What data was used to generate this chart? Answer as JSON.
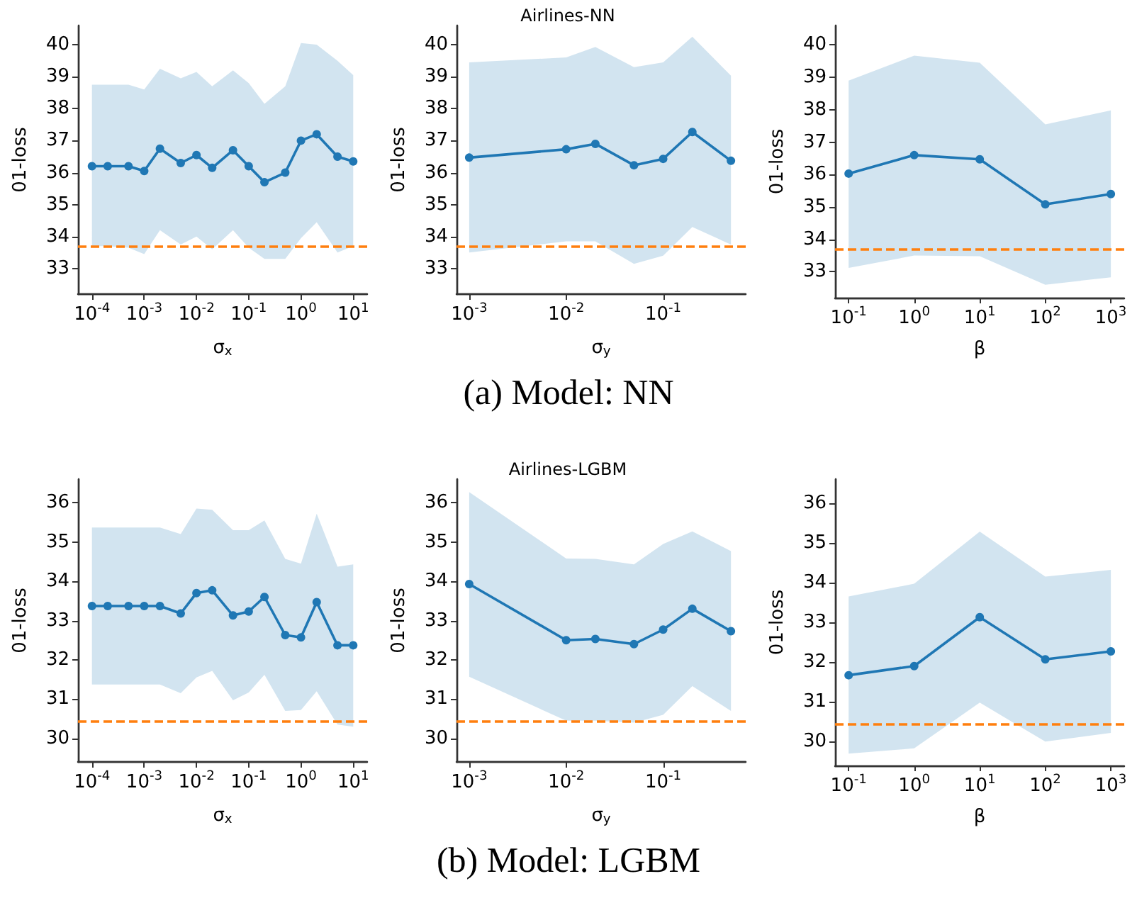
{
  "chart_data": [
    {
      "type": "line",
      "xlabel": "σ$_{x}$",
      "ylabel": "01-loss",
      "log": "x",
      "marker": "circle",
      "line_style": "solid",
      "grid": false,
      "x": [
        0.0001,
        0.0002,
        0.0005,
        0.001,
        0.002,
        0.005,
        0.01,
        0.02,
        0.05,
        0.1,
        0.2,
        0.5,
        1,
        2,
        5,
        10
      ],
      "series": [
        {
          "color": "#1f77b4",
          "values": [
            36.2,
            36.2,
            36.2,
            36.05,
            36.75,
            36.3,
            36.55,
            36.15,
            36.7,
            36.2,
            35.7,
            36.0,
            37.0,
            37.2,
            36.5,
            36.35
          ],
          "upper": [
            38.75,
            38.75,
            38.75,
            38.6,
            39.25,
            38.95,
            39.15,
            38.7,
            39.2,
            38.8,
            38.15,
            38.7,
            40.05,
            40.0,
            39.5,
            39.05
          ],
          "lower": [
            33.7,
            33.7,
            33.65,
            33.45,
            34.2,
            33.75,
            34.0,
            33.6,
            34.2,
            33.65,
            33.3,
            33.3,
            33.95,
            34.45,
            33.5,
            33.7
          ]
        }
      ],
      "ref_lines": [
        {
          "axis": "y",
          "value": 33.7,
          "color": "#ff7f0e",
          "line_style": "dashed"
        }
      ],
      "xlim": [
        5.4e-05,
        18.5
      ],
      "ylim": [
        32.2,
        40.6
      ],
      "xticks": [
        {
          "value": 0.0001,
          "label": "10$^{-4}$"
        },
        {
          "value": 0.001,
          "label": "10$^{-3}$"
        },
        {
          "value": 0.01,
          "label": "10$^{-2}$"
        },
        {
          "value": 0.1,
          "label": "10$^{-1}$"
        },
        {
          "value": 1,
          "label": "10$^{0}$"
        },
        {
          "value": 10,
          "label": "10$^{1}$"
        }
      ],
      "yticks": [
        33,
        34,
        35,
        36,
        37,
        38,
        39,
        40
      ]
    },
    {
      "type": "line",
      "title": "Airlines-NN",
      "xlabel": "σ$_{y}$",
      "ylabel": "01-loss",
      "log": "x",
      "marker": "circle",
      "line_style": "solid",
      "grid": false,
      "annotations": [
        "(a) Model: NN"
      ],
      "x": [
        0.001,
        0.01,
        0.02,
        0.05,
        0.1,
        0.2,
        0.5
      ],
      "series": [
        {
          "color": "#1f77b4",
          "values": [
            36.47,
            36.73,
            36.9,
            36.23,
            36.43,
            37.27,
            36.37
          ],
          "upper": [
            39.45,
            39.6,
            39.93,
            39.3,
            39.45,
            40.25,
            39.03
          ],
          "lower": [
            33.5,
            33.85,
            33.85,
            33.15,
            33.4,
            34.3,
            33.75
          ]
        }
      ],
      "ref_lines": [
        {
          "axis": "y",
          "value": 33.7,
          "color": "#ff7f0e",
          "line_style": "dashed"
        }
      ],
      "xlim": [
        0.00074,
        0.71
      ],
      "ylim": [
        32.2,
        40.6
      ],
      "xticks": [
        {
          "value": 0.001,
          "label": "10$^{-3}$"
        },
        {
          "value": 0.01,
          "label": "10$^{-2}$"
        },
        {
          "value": 0.1,
          "label": "10$^{-1}$"
        }
      ],
      "yticks": [
        33,
        34,
        35,
        36,
        37,
        38,
        39,
        40
      ]
    },
    {
      "type": "line",
      "xlabel": "β",
      "ylabel": "01-loss",
      "log": "x",
      "marker": "circle",
      "line_style": "solid",
      "grid": false,
      "x": [
        0.1,
        1,
        10,
        100,
        1000
      ],
      "series": [
        {
          "color": "#1f77b4",
          "values": [
            36.03,
            36.6,
            36.47,
            35.08,
            35.4
          ],
          "upper": [
            38.9,
            39.67,
            39.45,
            37.55,
            37.98
          ],
          "lower": [
            33.12,
            33.5,
            33.48,
            32.6,
            32.83
          ]
        }
      ],
      "ref_lines": [
        {
          "axis": "y",
          "value": 33.7,
          "color": "#ff7f0e",
          "line_style": "dashed"
        }
      ],
      "xlim": [
        0.062,
        1600
      ],
      "ylim": [
        32.2,
        40.6
      ],
      "xticks": [
        {
          "value": 0.1,
          "label": "10$^{-1}$"
        },
        {
          "value": 1,
          "label": "10$^{0}$"
        },
        {
          "value": 10,
          "label": "10$^{1}$"
        },
        {
          "value": 100,
          "label": "10$^{2}$"
        },
        {
          "value": 1000,
          "label": "10$^{3}$"
        }
      ],
      "yticks": [
        33,
        34,
        35,
        36,
        37,
        38,
        39,
        40
      ]
    },
    {
      "type": "line",
      "xlabel": "σ$_{x}$",
      "ylabel": "01-loss",
      "log": "x",
      "marker": "circle",
      "line_style": "solid",
      "grid": false,
      "x": [
        0.0001,
        0.0002,
        0.0005,
        0.001,
        0.002,
        0.005,
        0.01,
        0.02,
        0.05,
        0.1,
        0.2,
        0.5,
        1,
        2,
        5,
        10
      ],
      "series": [
        {
          "color": "#1f77b4",
          "values": [
            33.37,
            33.37,
            33.37,
            33.37,
            33.37,
            33.18,
            33.7,
            33.77,
            33.13,
            33.23,
            33.6,
            32.63,
            32.57,
            33.47,
            32.37,
            32.37
          ],
          "upper": [
            35.37,
            35.37,
            35.37,
            35.37,
            35.37,
            35.2,
            35.85,
            35.82,
            35.3,
            35.3,
            35.55,
            34.57,
            34.45,
            35.72,
            34.37,
            34.43
          ],
          "lower": [
            31.37,
            31.37,
            31.37,
            31.37,
            31.37,
            31.15,
            31.55,
            31.72,
            30.97,
            31.17,
            31.62,
            30.7,
            30.72,
            31.2,
            30.35,
            30.3
          ]
        }
      ],
      "ref_lines": [
        {
          "axis": "y",
          "value": 30.43,
          "color": "#ff7f0e",
          "line_style": "dashed"
        }
      ],
      "xlim": [
        5.4e-05,
        18.5
      ],
      "ylim": [
        29.4,
        36.6
      ],
      "xticks": [
        {
          "value": 0.0001,
          "label": "10$^{-4}$"
        },
        {
          "value": 0.001,
          "label": "10$^{-3}$"
        },
        {
          "value": 0.01,
          "label": "10$^{-2}$"
        },
        {
          "value": 0.1,
          "label": "10$^{-1}$"
        },
        {
          "value": 1,
          "label": "10$^{0}$"
        },
        {
          "value": 10,
          "label": "10$^{1}$"
        }
      ],
      "yticks": [
        30,
        31,
        32,
        33,
        34,
        35,
        36
      ]
    },
    {
      "type": "line",
      "title": "Airlines-LGBM",
      "xlabel": "σ$_{y}$",
      "ylabel": "01-loss",
      "log": "x",
      "marker": "circle",
      "line_style": "solid",
      "grid": false,
      "annotations": [
        "(b) Model: LGBM"
      ],
      "x": [
        0.001,
        0.01,
        0.02,
        0.05,
        0.1,
        0.2,
        0.5
      ],
      "series": [
        {
          "color": "#1f77b4",
          "values": [
            33.93,
            32.5,
            32.53,
            32.4,
            32.77,
            33.3,
            32.73
          ],
          "upper": [
            36.27,
            34.58,
            34.57,
            34.43,
            34.95,
            35.27,
            34.77
          ],
          "lower": [
            31.57,
            30.45,
            30.45,
            30.4,
            30.6,
            31.33,
            30.7
          ]
        }
      ],
      "ref_lines": [
        {
          "axis": "y",
          "value": 30.43,
          "color": "#ff7f0e",
          "line_style": "dashed"
        }
      ],
      "xlim": [
        0.00074,
        0.71
      ],
      "ylim": [
        29.4,
        36.6
      ],
      "xticks": [
        {
          "value": 0.001,
          "label": "10$^{-3}$"
        },
        {
          "value": 0.01,
          "label": "10$^{-2}$"
        },
        {
          "value": 0.1,
          "label": "10$^{-1}$"
        }
      ],
      "yticks": [
        30,
        31,
        32,
        33,
        34,
        35,
        36
      ]
    },
    {
      "type": "line",
      "xlabel": "β",
      "ylabel": "01-loss",
      "log": "x",
      "marker": "circle",
      "line_style": "solid",
      "grid": false,
      "x": [
        0.1,
        1,
        10,
        100,
        1000
      ],
      "series": [
        {
          "color": "#1f77b4",
          "values": [
            31.67,
            31.9,
            33.13,
            32.07,
            32.27
          ],
          "upper": [
            33.65,
            33.97,
            35.28,
            34.15,
            34.32
          ],
          "lower": [
            29.7,
            29.83,
            30.98,
            30.0,
            30.22
          ]
        }
      ],
      "ref_lines": [
        {
          "axis": "y",
          "value": 30.43,
          "color": "#ff7f0e",
          "line_style": "dashed"
        }
      ],
      "xlim": [
        0.062,
        1600
      ],
      "ylim": [
        29.4,
        36.6
      ],
      "xticks": [
        {
          "value": 0.1,
          "label": "10$^{-1}$"
        },
        {
          "value": 1,
          "label": "10$^{0}$"
        },
        {
          "value": 10,
          "label": "10$^{1}$"
        },
        {
          "value": 100,
          "label": "10$^{2}$"
        },
        {
          "value": 1000,
          "label": "10$^{3}$"
        }
      ],
      "yticks": [
        30,
        31,
        32,
        33,
        34,
        35,
        36
      ]
    }
  ]
}
